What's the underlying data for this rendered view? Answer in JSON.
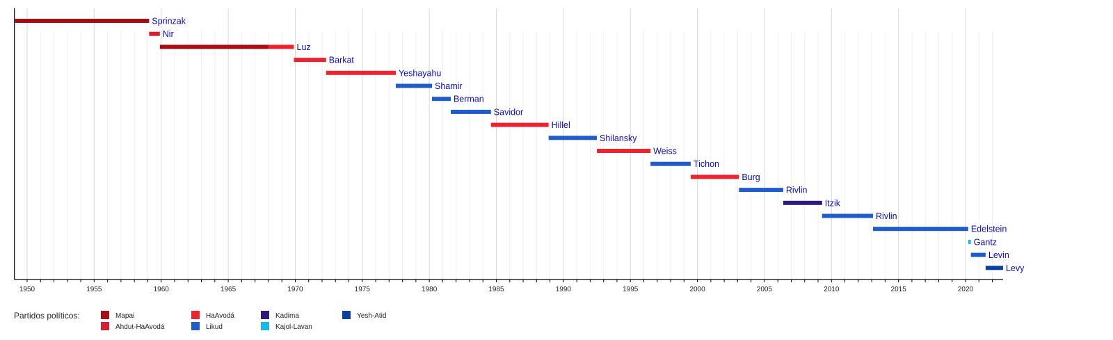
{
  "chart_data": {
    "type": "timeline",
    "title": "",
    "xlabel": "",
    "ylabel": "",
    "xlim": [
      1949.05,
      2022.8
    ],
    "grid": true,
    "x_ticks": [
      1950,
      1955,
      1960,
      1965,
      1970,
      1975,
      1980,
      1985,
      1990,
      1995,
      2000,
      2005,
      2010,
      2015,
      2020
    ],
    "legend_position": "bottom-left",
    "legend_title": "Partidos políticos:",
    "parties": [
      {
        "name": "Mapai",
        "color": "#a50e13"
      },
      {
        "name": "Ahdut-HaAvodá",
        "color": "#d42032"
      },
      {
        "name": "HaAvodá",
        "color": "#ee2330"
      },
      {
        "name": "Likud",
        "color": "#1f5bc9"
      },
      {
        "name": "Kadima",
        "color": "#2e1a7a"
      },
      {
        "name": "Kajol-Lavan",
        "color": "#1ab8e6"
      },
      {
        "name": "Yesh-Atid",
        "color": "#0b3fa0"
      }
    ],
    "speakers": [
      {
        "name": "Sprinzak",
        "segments": [
          {
            "start": 1949.1,
            "end": 1959.1,
            "party": "Mapai"
          }
        ]
      },
      {
        "name": "Nir",
        "segments": [
          {
            "start": 1959.1,
            "end": 1959.9,
            "party": "Ahdut-HaAvodá"
          }
        ]
      },
      {
        "name": "Luz",
        "segments": [
          {
            "start": 1959.9,
            "end": 1968.0,
            "party": "Mapai"
          },
          {
            "start": 1968.0,
            "end": 1969.9,
            "party": "HaAvodá"
          }
        ]
      },
      {
        "name": "Barkat",
        "segments": [
          {
            "start": 1969.9,
            "end": 1972.3,
            "party": "HaAvodá"
          }
        ]
      },
      {
        "name": "Yeshayahu",
        "segments": [
          {
            "start": 1972.3,
            "end": 1977.5,
            "party": "HaAvodá"
          }
        ]
      },
      {
        "name": "Shamir",
        "segments": [
          {
            "start": 1977.5,
            "end": 1980.2,
            "party": "Likud"
          }
        ]
      },
      {
        "name": "Berman",
        "segments": [
          {
            "start": 1980.2,
            "end": 1981.6,
            "party": "Likud"
          }
        ]
      },
      {
        "name": "Savidor",
        "segments": [
          {
            "start": 1981.6,
            "end": 1984.6,
            "party": "Likud"
          }
        ]
      },
      {
        "name": "Hillel",
        "segments": [
          {
            "start": 1984.6,
            "end": 1988.9,
            "party": "HaAvodá"
          }
        ]
      },
      {
        "name": "Shilansky",
        "segments": [
          {
            "start": 1988.9,
            "end": 1992.5,
            "party": "Likud"
          }
        ]
      },
      {
        "name": "Weiss",
        "segments": [
          {
            "start": 1992.5,
            "end": 1996.5,
            "party": "HaAvodá"
          }
        ]
      },
      {
        "name": "Tichon",
        "segments": [
          {
            "start": 1996.5,
            "end": 1999.5,
            "party": "Likud"
          }
        ]
      },
      {
        "name": "Burg",
        "segments": [
          {
            "start": 1999.5,
            "end": 2003.1,
            "party": "HaAvodá"
          }
        ]
      },
      {
        "name": "Rivlin",
        "segments": [
          {
            "start": 2003.1,
            "end": 2006.4,
            "party": "Likud"
          }
        ]
      },
      {
        "name": "Itzik",
        "segments": [
          {
            "start": 2006.4,
            "end": 2009.3,
            "party": "Kadima"
          }
        ]
      },
      {
        "name": "Rivlin",
        "segments": [
          {
            "start": 2009.3,
            "end": 2013.1,
            "party": "Likud"
          }
        ]
      },
      {
        "name": "Edelstein",
        "segments": [
          {
            "start": 2013.1,
            "end": 2020.2,
            "party": "Likud"
          }
        ]
      },
      {
        "name": "Gantz",
        "segments": [
          {
            "start": 2020.2,
            "end": 2020.4,
            "party": "Kajol-Lavan"
          }
        ]
      },
      {
        "name": "Levin",
        "segments": [
          {
            "start": 2020.4,
            "end": 2021.5,
            "party": "Likud"
          }
        ]
      },
      {
        "name": "Levy",
        "segments": [
          {
            "start": 2021.5,
            "end": 2022.8,
            "party": "Yesh-Atid"
          }
        ]
      }
    ]
  }
}
